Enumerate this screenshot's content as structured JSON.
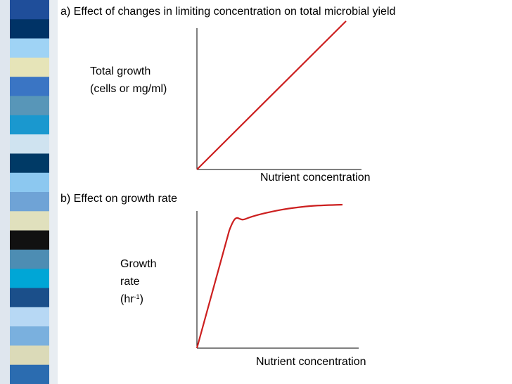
{
  "decoration": {
    "strip_colors": [
      "#1f4e9a",
      "#003366",
      "#9fd3f5",
      "#e6e4b8",
      "#3a75c4",
      "#5896b8",
      "#1a98cf",
      "#cfe3f0",
      "#003a66",
      "#8cc8f0",
      "#6fa3d6",
      "#e0e0bd",
      "#111111",
      "#4d8db3",
      "#00a6d6",
      "#1b4f8a",
      "#b7d8f4",
      "#7ab0de",
      "#dbdab8",
      "#2b6cb0"
    ]
  },
  "charts": [
    {
      "title": "a) Effect of changes in limiting concentration on total microbial yield",
      "ylabel_line1": "Total growth",
      "ylabel_line2": "(cells or mg/ml)",
      "xlabel": "Nutrient concentration"
    },
    {
      "title": "b) Effect on growth rate",
      "ylabel_line1": "Growth",
      "ylabel_line2": "rate",
      "ylabel_line3": "(hr",
      "ylabel_sup": "-1",
      "ylabel_close": ")",
      "xlabel": "Nutrient concentration"
    }
  ],
  "chart_data": [
    {
      "type": "line",
      "title": "a) Effect of changes in limiting concentration on total microbial yield",
      "xlabel": "Nutrient concentration",
      "ylabel": "Total growth (cells or mg/ml)",
      "series": [
        {
          "x": [
            0,
            1
          ],
          "y": [
            0,
            1
          ],
          "color": "#cc1f1f"
        }
      ],
      "xlim": [
        0,
        1.0
      ],
      "ylim": [
        0,
        1.0
      ],
      "grid": false
    },
    {
      "type": "line",
      "title": "b) Effect on growth rate",
      "xlabel": "Nutrient concentration",
      "ylabel": "Growth rate (hr-1)",
      "series": [
        {
          "x": [
            0,
            0.2,
            0.3,
            0.5,
            0.7,
            0.9
          ],
          "y": [
            0,
            0.82,
            0.9,
            0.96,
            0.99,
            1.0
          ],
          "color": "#cc1f1f"
        }
      ],
      "xlim": [
        0,
        1.0
      ],
      "ylim": [
        0,
        1.0
      ],
      "grid": false
    }
  ]
}
